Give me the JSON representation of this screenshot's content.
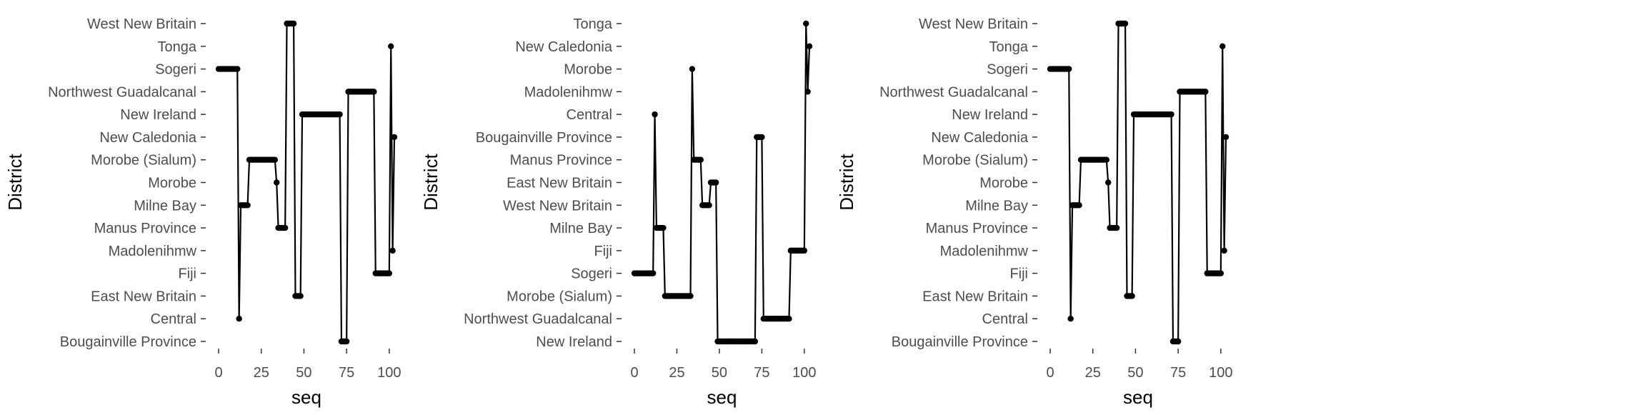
{
  "chart_data": [
    {
      "type": "line",
      "xlabel": "seq",
      "ylabel": "District",
      "xlim": [
        0,
        103
      ],
      "x_ticks": [
        0,
        25,
        50,
        75,
        100
      ],
      "grid": false,
      "categories": [
        "Bougainville Province",
        "Central",
        "East New Britain",
        "Fiji",
        "Madolenihmw",
        "Manus Province",
        "Milne Bay",
        "Morobe",
        "Morobe (Sialum)",
        "New Caledonia",
        "New Ireland",
        "Northwest Guadalcanal",
        "Sogeri",
        "Tonga",
        "West New Britain"
      ],
      "segments": [
        {
          "from": 0,
          "to": 11,
          "category": "Sogeri"
        },
        {
          "from": 12,
          "to": 12,
          "category": "Central"
        },
        {
          "from": 13,
          "to": 17,
          "category": "Milne Bay"
        },
        {
          "from": 18,
          "to": 33,
          "category": "Morobe (Sialum)"
        },
        {
          "from": 34,
          "to": 34,
          "category": "Morobe"
        },
        {
          "from": 35,
          "to": 39,
          "category": "Manus Province"
        },
        {
          "from": 40,
          "to": 44,
          "category": "West New Britain"
        },
        {
          "from": 45,
          "to": 48,
          "category": "East New Britain"
        },
        {
          "from": 49,
          "to": 71,
          "category": "New Ireland"
        },
        {
          "from": 72,
          "to": 75,
          "category": "Bougainville Province"
        },
        {
          "from": 76,
          "to": 91,
          "category": "Northwest Guadalcanal"
        },
        {
          "from": 92,
          "to": 100,
          "category": "Fiji"
        },
        {
          "from": 101,
          "to": 101,
          "category": "Tonga"
        },
        {
          "from": 102,
          "to": 102,
          "category": "Madolenihmw"
        },
        {
          "from": 103,
          "to": 103,
          "category": "New Caledonia"
        }
      ]
    },
    {
      "type": "line",
      "xlabel": "seq",
      "ylabel": "District",
      "xlim": [
        0,
        103
      ],
      "x_ticks": [
        0,
        25,
        50,
        75,
        100
      ],
      "grid": false,
      "categories": [
        "New Ireland",
        "Northwest Guadalcanal",
        "Morobe (Sialum)",
        "Sogeri",
        "Fiji",
        "Milne Bay",
        "West New Britain",
        "East New Britain",
        "Manus Province",
        "Bougainville Province",
        "Central",
        "Madolenihmw",
        "Morobe",
        "New Caledonia",
        "Tonga"
      ],
      "segments": [
        {
          "from": 0,
          "to": 11,
          "category": "Sogeri"
        },
        {
          "from": 12,
          "to": 12,
          "category": "Central"
        },
        {
          "from": 13,
          "to": 17,
          "category": "Milne Bay"
        },
        {
          "from": 18,
          "to": 33,
          "category": "Morobe (Sialum)"
        },
        {
          "from": 34,
          "to": 34,
          "category": "Morobe"
        },
        {
          "from": 35,
          "to": 39,
          "category": "Manus Province"
        },
        {
          "from": 40,
          "to": 44,
          "category": "West New Britain"
        },
        {
          "from": 45,
          "to": 48,
          "category": "East New Britain"
        },
        {
          "from": 49,
          "to": 71,
          "category": "New Ireland"
        },
        {
          "from": 72,
          "to": 75,
          "category": "Bougainville Province"
        },
        {
          "from": 76,
          "to": 91,
          "category": "Northwest Guadalcanal"
        },
        {
          "from": 92,
          "to": 100,
          "category": "Fiji"
        },
        {
          "from": 101,
          "to": 101,
          "category": "Tonga"
        },
        {
          "from": 102,
          "to": 102,
          "category": "Madolenihmw"
        },
        {
          "from": 103,
          "to": 103,
          "category": "New Caledonia"
        }
      ]
    },
    {
      "type": "line",
      "xlabel": "seq",
      "ylabel": "District",
      "xlim": [
        0,
        103
      ],
      "x_ticks": [
        0,
        25,
        50,
        75,
        100
      ],
      "grid": false,
      "categories": [
        "Bougainville Province",
        "Central",
        "East New Britain",
        "Fiji",
        "Madolenihmw",
        "Manus Province",
        "Milne Bay",
        "Morobe",
        "Morobe (Sialum)",
        "New Caledonia",
        "New Ireland",
        "Northwest Guadalcanal",
        "Sogeri",
        "Tonga",
        "West New Britain"
      ],
      "segments": [
        {
          "from": 0,
          "to": 11,
          "category": "Sogeri"
        },
        {
          "from": 12,
          "to": 12,
          "category": "Central"
        },
        {
          "from": 13,
          "to": 17,
          "category": "Milne Bay"
        },
        {
          "from": 18,
          "to": 33,
          "category": "Morobe (Sialum)"
        },
        {
          "from": 34,
          "to": 34,
          "category": "Morobe"
        },
        {
          "from": 35,
          "to": 39,
          "category": "Manus Province"
        },
        {
          "from": 40,
          "to": 44,
          "category": "West New Britain"
        },
        {
          "from": 45,
          "to": 48,
          "category": "East New Britain"
        },
        {
          "from": 49,
          "to": 71,
          "category": "New Ireland"
        },
        {
          "from": 72,
          "to": 75,
          "category": "Bougainville Province"
        },
        {
          "from": 76,
          "to": 91,
          "category": "Northwest Guadalcanal"
        },
        {
          "from": 92,
          "to": 100,
          "category": "Fiji"
        },
        {
          "from": 101,
          "to": 101,
          "category": "Tonga"
        },
        {
          "from": 102,
          "to": 102,
          "category": "Madolenihmw"
        },
        {
          "from": 103,
          "to": 103,
          "category": "New Caledonia"
        }
      ]
    }
  ]
}
